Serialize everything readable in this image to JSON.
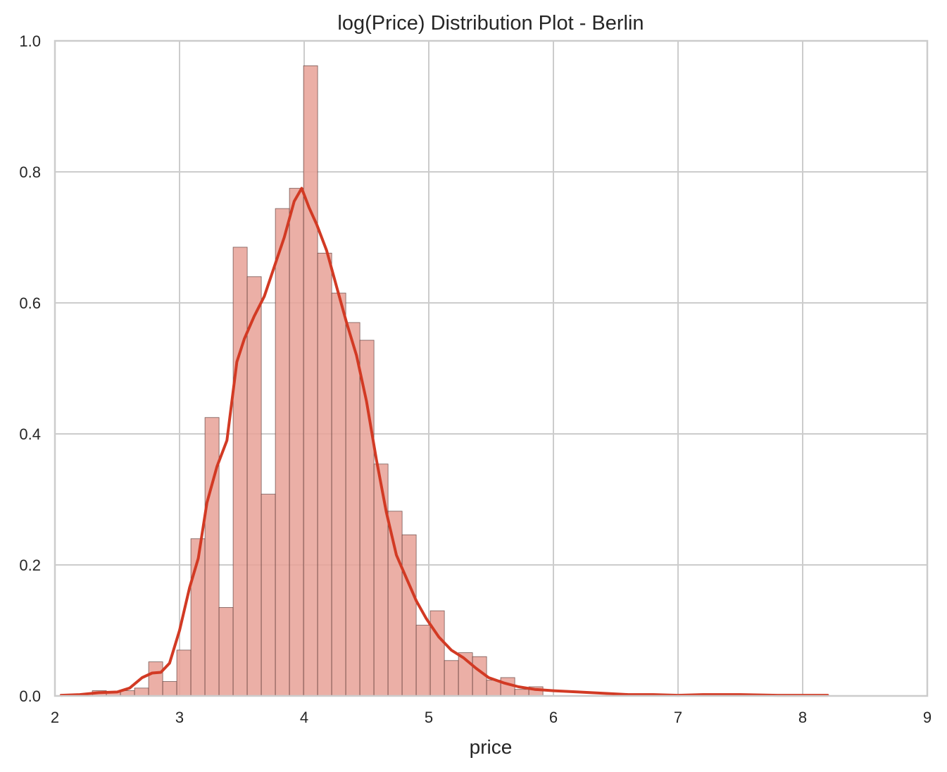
{
  "chart_data": {
    "type": "bar",
    "title": "log(Price) Distribution Plot - Berlin",
    "xlabel": "price",
    "ylabel": "",
    "xlim": [
      2,
      9
    ],
    "ylim": [
      0,
      1.0
    ],
    "xticks": [
      "2",
      "3",
      "4",
      "5",
      "6",
      "7",
      "8",
      "9"
    ],
    "yticks": [
      "0.0",
      "0.2",
      "0.4",
      "0.6",
      "0.8",
      "1.0"
    ],
    "grid": true,
    "histogram": {
      "bin_edges": [
        2.3,
        2.413,
        2.526,
        2.639,
        2.752,
        2.865,
        2.978,
        3.091,
        3.204,
        3.317,
        3.43,
        3.543,
        3.656,
        3.769,
        3.882,
        3.995,
        4.108,
        4.221,
        4.334,
        4.447,
        4.56,
        4.673,
        4.786,
        4.899,
        5.012,
        5.125,
        5.238,
        5.351,
        5.464,
        5.577,
        5.69,
        5.803,
        5.916
      ],
      "values": [
        0.008,
        0.006,
        0.008,
        0.012,
        0.052,
        0.022,
        0.07,
        0.24,
        0.425,
        0.135,
        0.685,
        0.64,
        0.308,
        0.744,
        0.775,
        0.962,
        0.676,
        0.615,
        0.57,
        0.543,
        0.354,
        0.282,
        0.246,
        0.108,
        0.13,
        0.054,
        0.066,
        0.06,
        0.024,
        0.028,
        0.01,
        0.014
      ],
      "color": "#e8a196",
      "edge_color": "#5a3a36"
    },
    "kde": {
      "color": "#d23a24",
      "x": [
        2.05,
        2.2,
        2.35,
        2.5,
        2.6,
        2.7,
        2.78,
        2.85,
        2.92,
        3.0,
        3.08,
        3.15,
        3.22,
        3.3,
        3.38,
        3.46,
        3.52,
        3.6,
        3.68,
        3.76,
        3.84,
        3.92,
        3.98,
        4.04,
        4.1,
        4.18,
        4.26,
        4.34,
        4.42,
        4.5,
        4.58,
        4.66,
        4.74,
        4.82,
        4.9,
        4.98,
        5.08,
        5.18,
        5.28,
        5.38,
        5.48,
        5.6,
        5.72,
        5.85,
        6.0,
        6.2,
        6.4,
        6.6,
        6.8,
        7.0,
        7.2,
        7.5,
        7.8,
        8.0,
        8.2
      ],
      "y": [
        0.001,
        0.002,
        0.005,
        0.006,
        0.012,
        0.028,
        0.035,
        0.036,
        0.05,
        0.1,
        0.165,
        0.21,
        0.295,
        0.35,
        0.39,
        0.51,
        0.545,
        0.58,
        0.61,
        0.655,
        0.7,
        0.755,
        0.775,
        0.745,
        0.72,
        0.68,
        0.625,
        0.57,
        0.52,
        0.45,
        0.36,
        0.28,
        0.215,
        0.18,
        0.145,
        0.118,
        0.09,
        0.07,
        0.058,
        0.042,
        0.028,
        0.02,
        0.014,
        0.01,
        0.008,
        0.006,
        0.004,
        0.002,
        0.002,
        0.001,
        0.002,
        0.002,
        0.001,
        0.001,
        0.001
      ]
    }
  }
}
